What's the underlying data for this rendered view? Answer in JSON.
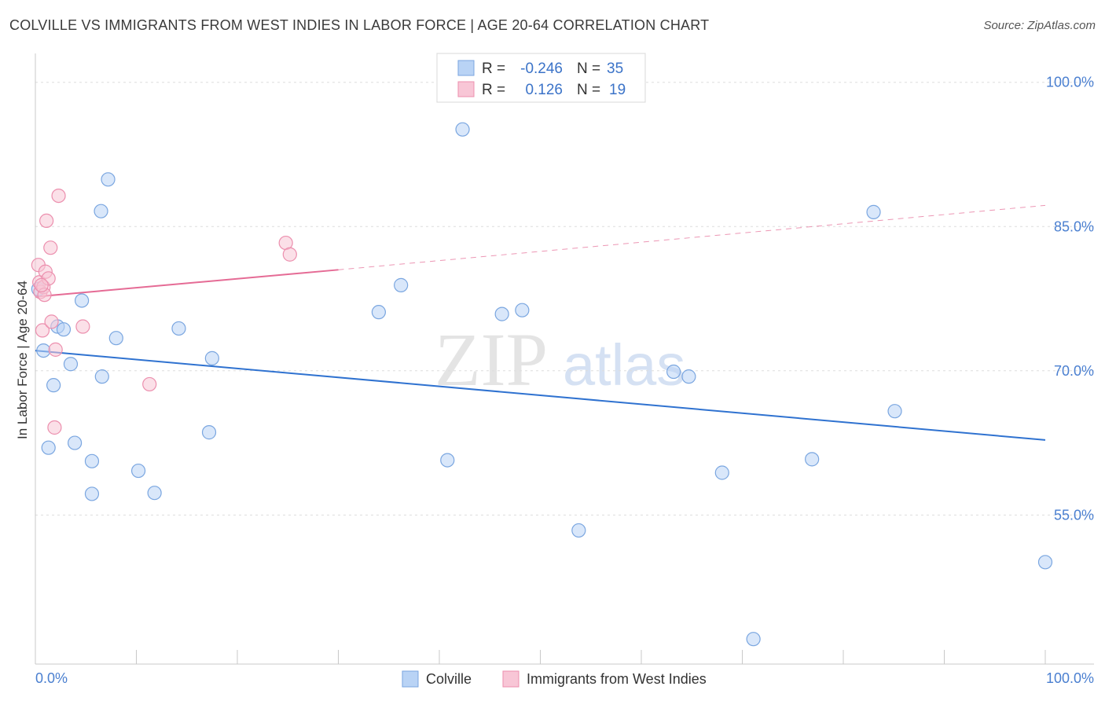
{
  "header": {
    "title": "COLVILLE VS IMMIGRANTS FROM WEST INDIES IN LABOR FORCE | AGE 20-64 CORRELATION CHART",
    "source": "Source: ZipAtlas.com"
  },
  "watermark": {
    "zip": "ZIP",
    "atlas": "atlas"
  },
  "colors": {
    "blue_fill": "#b9d3f5",
    "blue_stroke": "#7aa6e0",
    "blue_line": "#2f72d0",
    "pink_fill": "#f8c6d6",
    "pink_stroke": "#ec8fae",
    "pink_line": "#e56b95",
    "axis_label": "#4a7fd0",
    "grid": "#dddddd"
  },
  "legend": {
    "rows": [
      {
        "r_label": "R =",
        "r_value": "-0.246",
        "n_label": "N =",
        "n_value": "35"
      },
      {
        "r_label": "R =",
        "r_value": "0.126",
        "n_label": "N =",
        "n_value": "19"
      }
    ]
  },
  "bottom_legend": {
    "items": [
      "Colville",
      "Immigrants from West Indies"
    ]
  },
  "chart_data": {
    "type": "scatter",
    "title": "COLVILLE VS IMMIGRANTS FROM WEST INDIES IN LABOR FORCE | AGE 20-64 CORRELATION CHART",
    "xlabel": "",
    "ylabel": "In Labor Force | Age 20-64",
    "xlim": [
      0,
      100
    ],
    "ylim": [
      39.5,
      103
    ],
    "x_tick_labels": [
      "0.0%",
      "100.0%"
    ],
    "y_ticks": [
      {
        "value": 55,
        "label": "55.0%"
      },
      {
        "value": 70,
        "label": "70.0%"
      },
      {
        "value": 85,
        "label": "85.0%"
      },
      {
        "value": 100,
        "label": "100.0%"
      }
    ],
    "grid": true,
    "series": [
      {
        "name": "Colville",
        "color": "blue",
        "R": -0.246,
        "N": 35,
        "points": [
          [
            0.3,
            78.5
          ],
          [
            0.8,
            72.1
          ],
          [
            1.3,
            62.0
          ],
          [
            1.8,
            68.5
          ],
          [
            2.2,
            74.6
          ],
          [
            2.8,
            74.3
          ],
          [
            3.5,
            70.7
          ],
          [
            3.9,
            62.5
          ],
          [
            4.6,
            77.3
          ],
          [
            5.6,
            60.6
          ],
          [
            5.6,
            57.2
          ],
          [
            6.5,
            86.6
          ],
          [
            6.6,
            69.4
          ],
          [
            7.2,
            89.9
          ],
          [
            8.0,
            73.4
          ],
          [
            10.2,
            59.6
          ],
          [
            11.8,
            57.3
          ],
          [
            14.2,
            74.4
          ],
          [
            17.2,
            63.6
          ],
          [
            17.5,
            71.3
          ],
          [
            34.0,
            76.1
          ],
          [
            36.2,
            78.9
          ],
          [
            40.8,
            60.7
          ],
          [
            42.3,
            95.1
          ],
          [
            46.2,
            75.9
          ],
          [
            48.2,
            76.3
          ],
          [
            53.8,
            53.4
          ],
          [
            63.2,
            69.9
          ],
          [
            64.7,
            69.4
          ],
          [
            68.0,
            59.4
          ],
          [
            71.1,
            42.1
          ],
          [
            76.9,
            60.8
          ],
          [
            83.0,
            86.5
          ],
          [
            85.1,
            65.8
          ],
          [
            100.0,
            50.1
          ]
        ],
        "trend": {
          "x": [
            0,
            100
          ],
          "y": [
            72.1,
            62.8
          ]
        }
      },
      {
        "name": "Immigrants from West Indies",
        "color": "pink",
        "R": 0.126,
        "N": 19,
        "points": [
          [
            0.3,
            81.0
          ],
          [
            0.4,
            79.2
          ],
          [
            0.5,
            78.2
          ],
          [
            0.7,
            74.2
          ],
          [
            0.8,
            78.7
          ],
          [
            0.9,
            77.9
          ],
          [
            1.0,
            80.3
          ],
          [
            1.1,
            85.6
          ],
          [
            1.3,
            79.6
          ],
          [
            1.5,
            82.8
          ],
          [
            1.6,
            75.1
          ],
          [
            2.0,
            72.2
          ],
          [
            1.9,
            64.1
          ],
          [
            2.3,
            88.2
          ],
          [
            4.7,
            74.6
          ],
          [
            11.3,
            68.6
          ],
          [
            24.8,
            83.3
          ],
          [
            25.2,
            82.1
          ],
          [
            0.6,
            78.9
          ]
        ],
        "trend": {
          "x": [
            0,
            30
          ],
          "y": [
            77.7,
            80.5
          ]
        },
        "trend_extension": {
          "x": [
            30,
            100
          ],
          "y": [
            80.5,
            87.2
          ]
        }
      }
    ]
  }
}
